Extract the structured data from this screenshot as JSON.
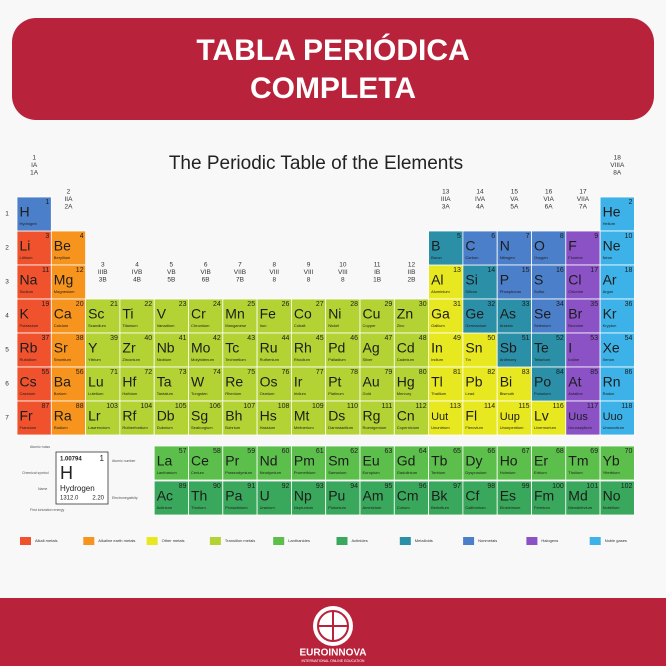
{
  "header": {
    "title_line1": "TABLA PERIÓDICA",
    "title_line2": "COMPLETA"
  },
  "subtitle": "The Periodic Table of the Elements",
  "groups": [
    [
      1,
      "IA",
      "1A"
    ],
    [
      2,
      "IIA",
      "2A"
    ],
    [
      3,
      "IIIB",
      "3B"
    ],
    [
      4,
      "IVB",
      "4B"
    ],
    [
      5,
      "VB",
      "5B"
    ],
    [
      6,
      "VIB",
      "6B"
    ],
    [
      7,
      "VIIB",
      "7B"
    ],
    [
      8,
      "VIII",
      "8"
    ],
    [
      9,
      "VIII",
      "8"
    ],
    [
      10,
      "VIII",
      "8"
    ],
    [
      11,
      "IB",
      "1B"
    ],
    [
      12,
      "IIB",
      "2B"
    ],
    [
      13,
      "IIIA",
      "3A"
    ],
    [
      14,
      "IVA",
      "4A"
    ],
    [
      15,
      "VA",
      "5A"
    ],
    [
      16,
      "VIA",
      "6A"
    ],
    [
      17,
      "VIIA",
      "7A"
    ],
    [
      18,
      "VIIIA",
      "8A"
    ]
  ],
  "periods": [
    1,
    2,
    3,
    4,
    5,
    6,
    7
  ],
  "key": {
    "mass": "1.00794",
    "number": 1,
    "symbol": "H",
    "name": "Hydrogen",
    "ionization": "1312.0",
    "electronegativity": "2.20",
    "mass_label": "Atomic mass",
    "symbol_label": "Chemical symbol",
    "name_label": "Name",
    "ionization_label": "First ionization energy",
    "electronegativity_label": "Electronegativity",
    "number_label": "Atomic number"
  },
  "categories": [
    {
      "name": "Alkali metals",
      "color": "#f0522e",
      "elements": [
        {
          "number": 3,
          "symbol": "Li",
          "name": "Lithium"
        },
        {
          "number": 11,
          "symbol": "Na",
          "name": "Sodium"
        },
        {
          "number": 19,
          "symbol": "K",
          "name": "Potassium"
        },
        {
          "number": 37,
          "symbol": "Rb",
          "name": "Rubidium"
        },
        {
          "number": 55,
          "symbol": "Cs",
          "name": "Caesium"
        },
        {
          "number": 87,
          "symbol": "Fr",
          "name": "Francium"
        }
      ]
    },
    {
      "name": "Alkaline earth metals",
      "color": "#f7941d",
      "elements": [
        {
          "number": 4,
          "symbol": "Be",
          "name": "Beryllium"
        },
        {
          "number": 12,
          "symbol": "Mg",
          "name": "Magnesium"
        },
        {
          "number": 20,
          "symbol": "Ca",
          "name": "Calcium"
        },
        {
          "number": 38,
          "symbol": "Sr",
          "name": "Strontium"
        },
        {
          "number": 56,
          "symbol": "Ba",
          "name": "Barium"
        },
        {
          "number": 88,
          "symbol": "Ra",
          "name": "Radium"
        }
      ]
    },
    {
      "name": "Other metals",
      "color": "#e8e821",
      "elements": [
        {
          "number": 13,
          "symbol": "Al",
          "name": "Aluminium"
        },
        {
          "number": 31,
          "symbol": "Ga",
          "name": "Gallium"
        },
        {
          "number": 49,
          "symbol": "In",
          "name": "Indium"
        },
        {
          "number": 50,
          "symbol": "Sn",
          "name": "Tin"
        },
        {
          "number": 81,
          "symbol": "Tl",
          "name": "Thallium"
        },
        {
          "number": 82,
          "symbol": "Pb",
          "name": "Lead"
        },
        {
          "number": 83,
          "symbol": "Bi",
          "name": "Bismuth"
        },
        {
          "number": 113,
          "symbol": "Uut",
          "name": "Ununtrium"
        },
        {
          "number": 114,
          "symbol": "Fl",
          "name": "Flerovium"
        },
        {
          "number": 115,
          "symbol": "Uup",
          "name": "Ununpentium"
        },
        {
          "number": 116,
          "symbol": "Lv",
          "name": "Livermorium"
        }
      ]
    },
    {
      "name": "Transition metals",
      "color": "#b3d335",
      "elements": [
        {
          "number": 21,
          "symbol": "Sc",
          "name": "Scandium"
        },
        {
          "number": 22,
          "symbol": "Ti",
          "name": "Titanium"
        },
        {
          "number": 23,
          "symbol": "V",
          "name": "Vanadium"
        },
        {
          "number": 24,
          "symbol": "Cr",
          "name": "Chromium"
        },
        {
          "number": 25,
          "symbol": "Mn",
          "name": "Manganese"
        },
        {
          "number": 26,
          "symbol": "Fe",
          "name": "Iron"
        },
        {
          "number": 27,
          "symbol": "Co",
          "name": "Cobalt"
        },
        {
          "number": 28,
          "symbol": "Ni",
          "name": "Nickel"
        },
        {
          "number": 29,
          "symbol": "Cu",
          "name": "Copper"
        },
        {
          "number": 30,
          "symbol": "Zn",
          "name": "Zinc"
        },
        {
          "number": 39,
          "symbol": "Y",
          "name": "Yttrium"
        },
        {
          "number": 40,
          "symbol": "Zr",
          "name": "Zirconium"
        },
        {
          "number": 41,
          "symbol": "Nb",
          "name": "Niobium"
        },
        {
          "number": 42,
          "symbol": "Mo",
          "name": "Molybdenum"
        },
        {
          "number": 43,
          "symbol": "Tc",
          "name": "Technetium"
        },
        {
          "number": 44,
          "symbol": "Ru",
          "name": "Ruthenium"
        },
        {
          "number": 45,
          "symbol": "Rh",
          "name": "Rhodium"
        },
        {
          "number": 46,
          "symbol": "Pd",
          "name": "Palladium"
        },
        {
          "number": 47,
          "symbol": "Ag",
          "name": "Silver"
        },
        {
          "number": 48,
          "symbol": "Cd",
          "name": "Cadmium"
        },
        {
          "number": 71,
          "symbol": "Lu",
          "name": "Lutetium"
        },
        {
          "number": 72,
          "symbol": "Hf",
          "name": "Hafnium"
        },
        {
          "number": 73,
          "symbol": "Ta",
          "name": "Tantalum"
        },
        {
          "number": 74,
          "symbol": "W",
          "name": "Tungsten"
        },
        {
          "number": 75,
          "symbol": "Re",
          "name": "Rhenium"
        },
        {
          "number": 76,
          "symbol": "Os",
          "name": "Osmium"
        },
        {
          "number": 77,
          "symbol": "Ir",
          "name": "Iridium"
        },
        {
          "number": 78,
          "symbol": "Pt",
          "name": "Platinum"
        },
        {
          "number": 79,
          "symbol": "Au",
          "name": "Gold"
        },
        {
          "number": 80,
          "symbol": "Hg",
          "name": "Mercury"
        },
        {
          "number": 103,
          "symbol": "Lr",
          "name": "Lawrencium"
        },
        {
          "number": 104,
          "symbol": "Rf",
          "name": "Rutherfordium"
        },
        {
          "number": 105,
          "symbol": "Db",
          "name": "Dubnium"
        },
        {
          "number": 106,
          "symbol": "Sg",
          "name": "Seaborgium"
        },
        {
          "number": 107,
          "symbol": "Bh",
          "name": "Bohrium"
        },
        {
          "number": 108,
          "symbol": "Hs",
          "name": "Hassium"
        },
        {
          "number": 109,
          "symbol": "Mt",
          "name": "Meitnerium"
        },
        {
          "number": 110,
          "symbol": "Ds",
          "name": "Darmstadtium"
        },
        {
          "number": 111,
          "symbol": "Rg",
          "name": "Roentgenium"
        },
        {
          "number": 112,
          "symbol": "Cn",
          "name": "Copernicium"
        }
      ]
    },
    {
      "name": "Lanthanides",
      "color": "#5cbf4b",
      "elements": [
        {
          "number": 57,
          "symbol": "La",
          "name": "Lanthanum"
        },
        {
          "number": 58,
          "symbol": "Ce",
          "name": "Cerium"
        },
        {
          "number": 59,
          "symbol": "Pr",
          "name": "Praseodymium"
        },
        {
          "number": 60,
          "symbol": "Nd",
          "name": "Neodymium"
        },
        {
          "number": 61,
          "symbol": "Pm",
          "name": "Promethium"
        },
        {
          "number": 62,
          "symbol": "Sm",
          "name": "Samarium"
        },
        {
          "number": 63,
          "symbol": "Eu",
          "name": "Europium"
        },
        {
          "number": 64,
          "symbol": "Gd",
          "name": "Gadolinium"
        },
        {
          "number": 65,
          "symbol": "Tb",
          "name": "Terbium"
        },
        {
          "number": 66,
          "symbol": "Dy",
          "name": "Dysprosium"
        },
        {
          "number": 67,
          "symbol": "Ho",
          "name": "Holmium"
        },
        {
          "number": 68,
          "symbol": "Er",
          "name": "Erbium"
        },
        {
          "number": 69,
          "symbol": "Tm",
          "name": "Thulium"
        },
        {
          "number": 70,
          "symbol": "Yb",
          "name": "Ytterbium"
        }
      ]
    },
    {
      "name": "Actinides",
      "color": "#3aa85c",
      "elements": [
        {
          "number": 89,
          "symbol": "Ac",
          "name": "Actinium"
        },
        {
          "number": 90,
          "symbol": "Th",
          "name": "Thorium"
        },
        {
          "number": 91,
          "symbol": "Pa",
          "name": "Protactinium"
        },
        {
          "number": 92,
          "symbol": "U",
          "name": "Uranium"
        },
        {
          "number": 93,
          "symbol": "Np",
          "name": "Neptunium"
        },
        {
          "number": 94,
          "symbol": "Pu",
          "name": "Plutonium"
        },
        {
          "number": 95,
          "symbol": "Am",
          "name": "Americium"
        },
        {
          "number": 96,
          "symbol": "Cm",
          "name": "Curium"
        },
        {
          "number": 97,
          "symbol": "Bk",
          "name": "Berkelium"
        },
        {
          "number": 98,
          "symbol": "Cf",
          "name": "Californium"
        },
        {
          "number": 99,
          "symbol": "Es",
          "name": "Einsteinium"
        },
        {
          "number": 100,
          "symbol": "Fm",
          "name": "Fermium"
        },
        {
          "number": 101,
          "symbol": "Md",
          "name": "Mendelevium"
        },
        {
          "number": 102,
          "symbol": "No",
          "name": "Nobelium"
        }
      ]
    },
    {
      "name": "Metalloids",
      "color": "#2b8fa8",
      "elements": [
        {
          "number": 5,
          "symbol": "B",
          "name": "Boron"
        },
        {
          "number": 14,
          "symbol": "Si",
          "name": "Silicon"
        },
        {
          "number": 32,
          "symbol": "Ge",
          "name": "Germanium"
        },
        {
          "number": 33,
          "symbol": "As",
          "name": "Arsenic"
        },
        {
          "number": 51,
          "symbol": "Sb",
          "name": "Antimony"
        },
        {
          "number": 52,
          "symbol": "Te",
          "name": "Tellurium"
        },
        {
          "number": 84,
          "symbol": "Po",
          "name": "Polonium"
        }
      ]
    },
    {
      "name": "Nonmetals",
      "color": "#4c7fc9",
      "elements": [
        {
          "number": 1,
          "symbol": "H",
          "name": "Hydrogen"
        },
        {
          "number": 6,
          "symbol": "C",
          "name": "Carbon"
        },
        {
          "number": 7,
          "symbol": "N",
          "name": "Nitrogen"
        },
        {
          "number": 8,
          "symbol": "O",
          "name": "Oxygen"
        },
        {
          "number": 15,
          "symbol": "P",
          "name": "Phosphorus"
        },
        {
          "number": 16,
          "symbol": "S",
          "name": "Sulfur"
        },
        {
          "number": 34,
          "symbol": "Se",
          "name": "Selenium"
        }
      ]
    },
    {
      "name": "Halogens",
      "color": "#8b52c6",
      "elements": [
        {
          "number": 9,
          "symbol": "F",
          "name": "Fluorine"
        },
        {
          "number": 17,
          "symbol": "Cl",
          "name": "Chlorine"
        },
        {
          "number": 35,
          "symbol": "Br",
          "name": "Bromine"
        },
        {
          "number": 53,
          "symbol": "I",
          "name": "Iodine"
        },
        {
          "number": 85,
          "symbol": "At",
          "name": "Astatine"
        },
        {
          "number": 117,
          "symbol": "Uus",
          "name": "Ununseptium"
        }
      ]
    },
    {
      "name": "Noble gases",
      "color": "#3db2e8",
      "elements": [
        {
          "number": 2,
          "symbol": "He",
          "name": "Helium"
        },
        {
          "number": 10,
          "symbol": "Ne",
          "name": "Neon"
        },
        {
          "number": 18,
          "symbol": "Ar",
          "name": "Argon"
        },
        {
          "number": 36,
          "symbol": "Kr",
          "name": "Krypton"
        },
        {
          "number": 54,
          "symbol": "Xe",
          "name": "Xenon"
        },
        {
          "number": 86,
          "symbol": "Rn",
          "name": "Radon"
        },
        {
          "number": 118,
          "symbol": "Uuo",
          "name": "Ununoctium"
        }
      ]
    }
  ],
  "footer": {
    "brand": "EUROINNOVA",
    "tagline": "INTERNATIONAL ONLINE EDUCATION"
  }
}
